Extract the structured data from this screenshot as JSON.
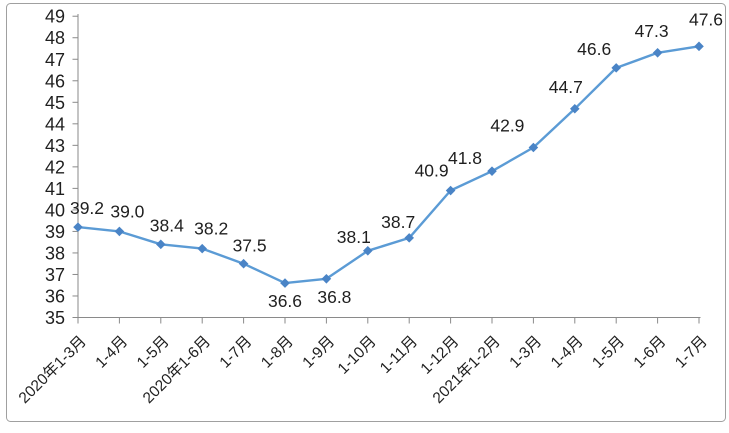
{
  "chart": {
    "background": "#FFFFFF",
    "frame_border_color": "#A0A0A0"
  },
  "chart_data": {
    "type": "line",
    "title": "",
    "xlabel": "",
    "ylabel": "",
    "categories": [
      "2020年1-3月",
      "1-4月",
      "1-5月",
      "2020年1-6月",
      "1-7月",
      "1-8月",
      "1-9月",
      "1-10月",
      "1-11月",
      "1-12月",
      "2021年1-2月",
      "1-3月",
      "1-4月",
      "1-5月",
      "1-6月",
      "1-7月"
    ],
    "values": [
      39.2,
      39.0,
      38.4,
      38.2,
      37.5,
      36.6,
      36.8,
      38.1,
      38.7,
      40.9,
      41.8,
      42.9,
      44.7,
      46.6,
      47.3,
      47.6
    ],
    "data_labels": [
      "39.2",
      "39.0",
      "38.4",
      "38.2",
      "37.5",
      "36.6",
      "36.8",
      "38.1",
      "38.7",
      "40.9",
      "41.8",
      "42.9",
      "44.7",
      "46.6",
      "47.3",
      "47.6"
    ],
    "label_below_indexes": [
      5,
      6
    ],
    "yticks": [
      35,
      36,
      37,
      38,
      39,
      40,
      41,
      42,
      43,
      44,
      45,
      46,
      47,
      48,
      49
    ],
    "ylim": [
      35,
      49
    ],
    "grid": false,
    "legend": "none",
    "marker_shape": "diamond",
    "line_color": "#5B9BD5",
    "marker_color": "#4A84C6",
    "axis_color": "#8A8A8A",
    "label_color": "#1F1F1F"
  }
}
